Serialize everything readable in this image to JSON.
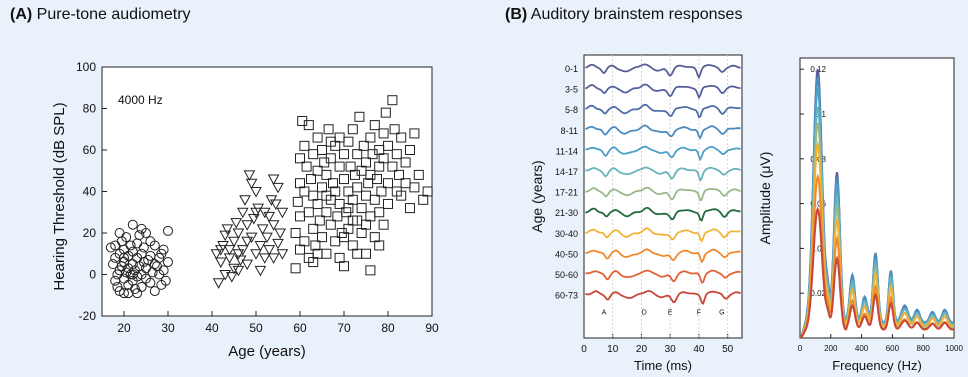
{
  "panels": {
    "a": {
      "letter": "(A)",
      "title": "Pure-tone audiometry"
    },
    "b": {
      "letter": "(B)",
      "title": "Auditory brainstem responses"
    }
  },
  "chart_data": [
    {
      "type": "scatter",
      "annotation": "4000 Hz",
      "xlabel": "Age (years)",
      "ylabel": "Hearing Threshold (dB SPL)",
      "xlim": [
        15,
        90
      ],
      "ylim": [
        -20,
        100
      ],
      "xticks": [
        20,
        30,
        40,
        50,
        60,
        70,
        80,
        90
      ],
      "yticks": [
        -20,
        0,
        20,
        40,
        60,
        80,
        100
      ],
      "series": [
        {
          "marker": "circle",
          "points": [
            [
              17,
              13
            ],
            [
              17.5,
              5
            ],
            [
              18,
              -3
            ],
            [
              18,
              8
            ],
            [
              18.5,
              0
            ],
            [
              18.5,
              -6
            ],
            [
              19,
              2
            ],
            [
              19,
              10
            ],
            [
              19,
              -8
            ],
            [
              19.5,
              4
            ],
            [
              19.5,
              16
            ],
            [
              20,
              -2
            ],
            [
              20,
              6
            ],
            [
              20,
              12
            ],
            [
              20,
              -9
            ],
            [
              20.5,
              1
            ],
            [
              20.5,
              18
            ],
            [
              21,
              -5
            ],
            [
              21,
              3
            ],
            [
              21,
              9
            ],
            [
              21.5,
              14
            ],
            [
              21.5,
              0
            ],
            [
              22,
              -3
            ],
            [
              22,
              5
            ],
            [
              22,
              11
            ],
            [
              22,
              24
            ],
            [
              22.5,
              -7
            ],
            [
              22.5,
              2
            ],
            [
              23,
              8
            ],
            [
              23,
              -1
            ],
            [
              23,
              15
            ],
            [
              23.5,
              4
            ],
            [
              23.5,
              19
            ],
            [
              24,
              0
            ],
            [
              24,
              -6
            ],
            [
              24,
              10
            ],
            [
              24.5,
              6
            ],
            [
              24.5,
              13
            ],
            [
              25,
              -2
            ],
            [
              25,
              3
            ],
            [
              25,
              20
            ],
            [
              25.5,
              7
            ],
            [
              26,
              -4
            ],
            [
              26,
              9
            ],
            [
              26.5,
              1
            ],
            [
              27,
              14
            ],
            [
              27,
              -8
            ],
            [
              27.5,
              4
            ],
            [
              28,
              0
            ],
            [
              28,
              8
            ],
            [
              28.5,
              -5
            ],
            [
              29,
              12
            ],
            [
              29,
              2
            ],
            [
              29.5,
              -3
            ],
            [
              30,
              21
            ],
            [
              30,
              6
            ],
            [
              19,
              20
            ],
            [
              21,
              -9
            ],
            [
              23,
              -9
            ],
            [
              26,
              16
            ],
            [
              18,
              14
            ],
            [
              24,
              22
            ],
            [
              20,
              8
            ],
            [
              22,
              0
            ],
            [
              27,
              5
            ],
            [
              28.5,
              10
            ]
          ]
        },
        {
          "marker": "triangle-down",
          "points": [
            [
              41,
              10
            ],
            [
              41.5,
              -4
            ],
            [
              42,
              6
            ],
            [
              42.5,
              14
            ],
            [
              43,
              19
            ],
            [
              43,
              0
            ],
            [
              43.5,
              22
            ],
            [
              44,
              8
            ],
            [
              44,
              12
            ],
            [
              44.5,
              -1
            ],
            [
              45,
              16
            ],
            [
              45,
              3
            ],
            [
              45.5,
              25
            ],
            [
              46,
              10
            ],
            [
              46,
              20
            ],
            [
              46.5,
              7
            ],
            [
              47,
              30
            ],
            [
              47,
              12
            ],
            [
              47.5,
              36
            ],
            [
              48,
              24
            ],
            [
              48,
              5
            ],
            [
              48.5,
              48
            ],
            [
              49,
              44
            ],
            [
              49,
              18
            ],
            [
              49.5,
              27
            ],
            [
              50,
              10
            ],
            [
              50,
              40
            ],
            [
              50.5,
              32
            ],
            [
              51,
              14
            ],
            [
              51,
              2
            ],
            [
              51.5,
              22
            ],
            [
              52,
              8
            ],
            [
              52,
              30
            ],
            [
              52.5,
              18
            ],
            [
              53,
              12
            ],
            [
              53,
              28
            ],
            [
              53.5,
              36
            ],
            [
              54,
              46
            ],
            [
              54,
              24
            ],
            [
              54.5,
              34
            ],
            [
              55,
              15
            ],
            [
              55,
              42
            ],
            [
              55.5,
              20
            ],
            [
              56,
              30
            ],
            [
              56,
              10
            ],
            [
              42,
              12
            ],
            [
              46,
              2
            ],
            [
              48,
              16
            ],
            [
              50,
              30
            ],
            [
              54,
              8
            ]
          ]
        },
        {
          "marker": "square",
          "points": [
            [
              59,
              3
            ],
            [
              59,
              20
            ],
            [
              59.5,
              35
            ],
            [
              60,
              44
            ],
            [
              60,
              12
            ],
            [
              60,
              28
            ],
            [
              60.5,
              74
            ],
            [
              61,
              40
            ],
            [
              61,
              62
            ],
            [
              61,
              16
            ],
            [
              61.5,
              52
            ],
            [
              62,
              30
            ],
            [
              62,
              72
            ],
            [
              62,
              8
            ],
            [
              62.5,
              46
            ],
            [
              63,
              58
            ],
            [
              63,
              22
            ],
            [
              63,
              38
            ],
            [
              63.5,
              14
            ],
            [
              64,
              66
            ],
            [
              64,
              34
            ],
            [
              64,
              50
            ],
            [
              64.5,
              26
            ],
            [
              65,
              42
            ],
            [
              65,
              18
            ],
            [
              65,
              60
            ],
            [
              65.5,
              54
            ],
            [
              66,
              30
            ],
            [
              66,
              48
            ],
            [
              66,
              10
            ],
            [
              66.5,
              70
            ],
            [
              67,
              36
            ],
            [
              67,
              24
            ],
            [
              67,
              56
            ],
            [
              67.5,
              44
            ],
            [
              68,
              62
            ],
            [
              68,
              16
            ],
            [
              68,
              40
            ],
            [
              68.5,
              28
            ],
            [
              69,
              52
            ],
            [
              69,
              34
            ],
            [
              69,
              66
            ],
            [
              69.5,
              20
            ],
            [
              70,
              46
            ],
            [
              70,
              58
            ],
            [
              70,
              4
            ],
            [
              70.5,
              30
            ],
            [
              71,
              40
            ],
            [
              71,
              64
            ],
            [
              71,
              22
            ],
            [
              71.5,
              52
            ],
            [
              72,
              36
            ],
            [
              72,
              70
            ],
            [
              72,
              14
            ],
            [
              72.5,
              48
            ],
            [
              73,
              26
            ],
            [
              73,
              58
            ],
            [
              73,
              42
            ],
            [
              73.5,
              76
            ],
            [
              74,
              32
            ],
            [
              74,
              50
            ],
            [
              74,
              20
            ],
            [
              74.5,
              62
            ],
            [
              75,
              38
            ],
            [
              75,
              10
            ],
            [
              75,
              54
            ],
            [
              75.5,
              44
            ],
            [
              76,
              66
            ],
            [
              76,
              28
            ],
            [
              76,
              48
            ],
            [
              76.5,
              58
            ],
            [
              77,
              36
            ],
            [
              77,
              72
            ],
            [
              77,
              18
            ],
            [
              77.5,
              46
            ],
            [
              78,
              60
            ],
            [
              78,
              30
            ],
            [
              78,
              52
            ],
            [
              78.5,
              40
            ],
            [
              79,
              68
            ],
            [
              79,
              24
            ],
            [
              79,
              56
            ],
            [
              79.5,
              78
            ],
            [
              80,
              44
            ],
            [
              80,
              62
            ],
            [
              80,
              34
            ],
            [
              81,
              84
            ],
            [
              81,
              52
            ],
            [
              81.5,
              70
            ],
            [
              82,
              40
            ],
            [
              82,
              58
            ],
            [
              82.5,
              48
            ],
            [
              83,
              66
            ],
            [
              83,
              38
            ],
            [
              84,
              54
            ],
            [
              84,
              44
            ],
            [
              85,
              60
            ],
            [
              85,
              32
            ],
            [
              86,
              42
            ],
            [
              86,
              68
            ],
            [
              87,
              48
            ],
            [
              88,
              36
            ],
            [
              89,
              40
            ],
            [
              63,
              6
            ],
            [
              69,
              8
            ],
            [
              72,
              26
            ],
            [
              76,
              2
            ],
            [
              60,
              56
            ],
            [
              64,
              10
            ],
            [
              67,
              64
            ],
            [
              70,
              18
            ],
            [
              73,
              10
            ],
            [
              78,
              14
            ],
            [
              66,
              38
            ],
            [
              71,
              32
            ],
            [
              75,
              24
            ]
          ]
        }
      ]
    },
    {
      "type": "line",
      "xlabel": "Time (ms)",
      "ylabel": "Age (years)",
      "xlim": [
        0,
        55
      ],
      "xticks": [
        0,
        10,
        20,
        30,
        40,
        50
      ],
      "peak_labels": [
        {
          "label": "A",
          "t": 7
        },
        {
          "label": "D",
          "t": 21
        },
        {
          "label": "E",
          "t": 30
        },
        {
          "label": "F",
          "t": 40
        },
        {
          "label": "G",
          "t": 48
        }
      ],
      "series": [
        {
          "name": "0-1",
          "color": "#5a5e98"
        },
        {
          "name": "3-5",
          "color": "#56619c"
        },
        {
          "name": "5-8",
          "color": "#4f6ea8"
        },
        {
          "name": "8-11",
          "color": "#4b8bbf"
        },
        {
          "name": "11-14",
          "color": "#4ba0c8"
        },
        {
          "name": "14-17",
          "color": "#69b3bd"
        },
        {
          "name": "17-21",
          "color": "#9ab88a"
        },
        {
          "name": "21-30",
          "color": "#236b3f"
        },
        {
          "name": "30-40",
          "color": "#f2b335"
        },
        {
          "name": "40-50",
          "color": "#ef8a2e"
        },
        {
          "name": "50-60",
          "color": "#e26236"
        },
        {
          "name": "60-73",
          "color": "#c8473a"
        }
      ]
    },
    {
      "type": "line",
      "xlabel": "Frequency (Hz)",
      "ylabel": "Amplitude (μV)",
      "xlim": [
        0,
        1000
      ],
      "ylim": [
        0,
        0.125
      ],
      "xticks": [
        0,
        200,
        400,
        600,
        800,
        1000
      ],
      "yticks": [
        0.02,
        0.04,
        0.06,
        0.08,
        0.1,
        0.12
      ],
      "ytick_labels": [
        "0.02",
        "0.04",
        "0.06",
        "0.08",
        "0.1",
        "0.12"
      ],
      "series": [
        {
          "color": "#5a5e98",
          "scale": 1.0
        },
        {
          "color": "#4b8bbf",
          "scale": 0.97
        },
        {
          "color": "#4ba0c8",
          "scale": 0.93
        },
        {
          "color": "#69b3bd",
          "scale": 0.86
        },
        {
          "color": "#9ab88a",
          "scale": 0.8
        },
        {
          "color": "#f2b335",
          "scale": 0.72
        },
        {
          "color": "#ef8a2e",
          "scale": 0.6
        },
        {
          "color": "#c8473a",
          "scale": 0.48
        }
      ]
    }
  ]
}
